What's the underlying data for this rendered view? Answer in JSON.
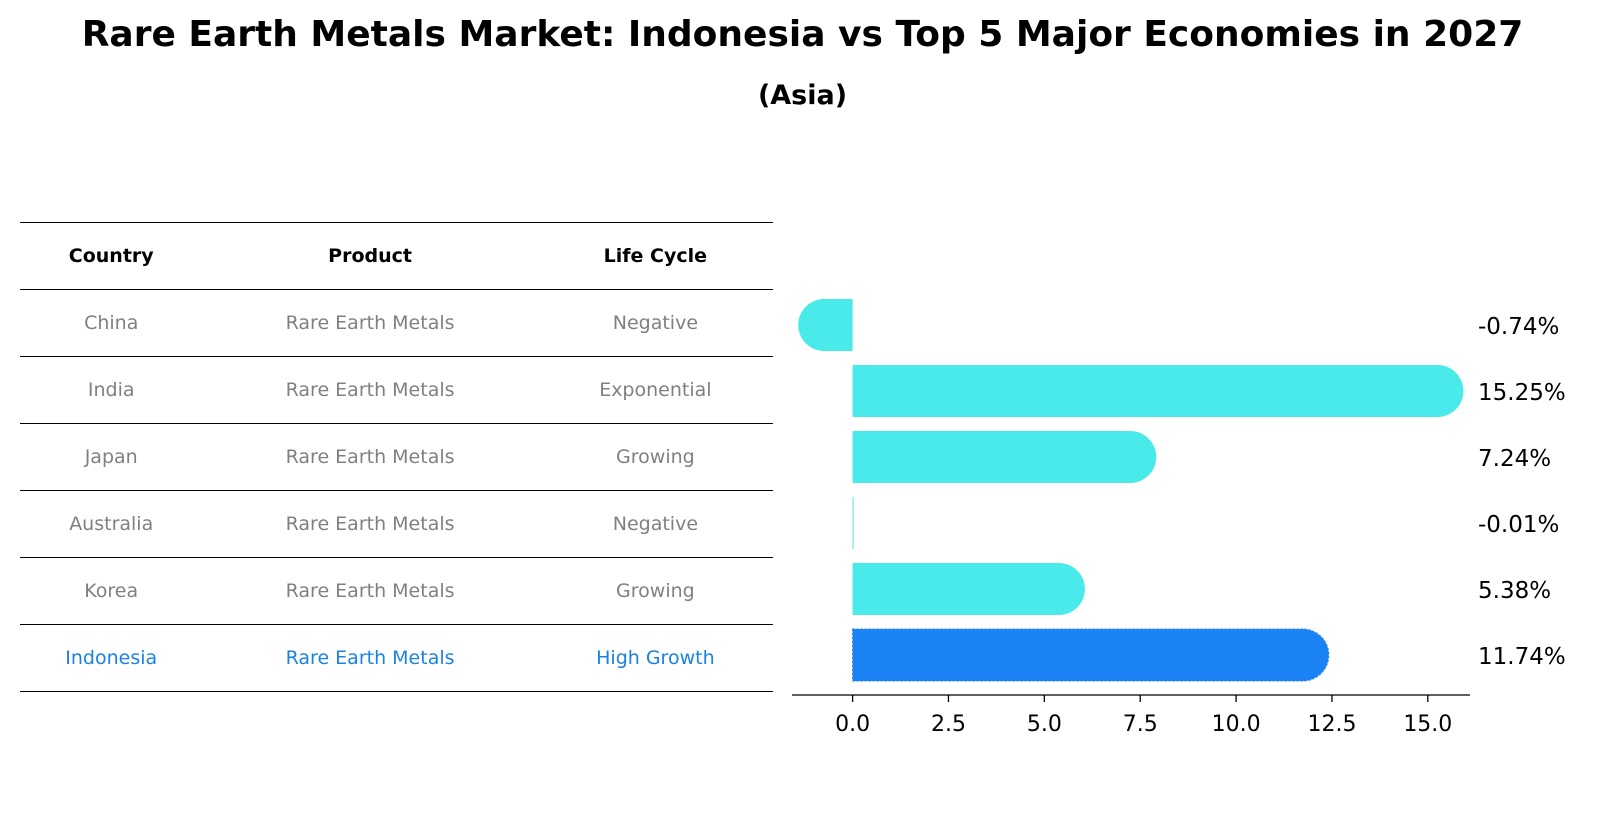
{
  "title": "Rare Earth Metals Market: Indonesia vs Top 5 Major Economies in 2027",
  "subtitle": "(Asia)",
  "table": {
    "headers": [
      "Country",
      "Product",
      "Life Cycle"
    ],
    "rows": [
      {
        "country": "China",
        "product": "Rare Earth Metals",
        "life_cycle": "Negative"
      },
      {
        "country": "India",
        "product": "Rare Earth Metals",
        "life_cycle": "Exponential"
      },
      {
        "country": "Japan",
        "product": "Rare Earth Metals",
        "life_cycle": "Growing"
      },
      {
        "country": "Australia",
        "product": "Rare Earth Metals",
        "life_cycle": "Negative"
      },
      {
        "country": "Korea",
        "product": "Rare Earth Metals",
        "life_cycle": "Growing"
      },
      {
        "country": "Indonesia",
        "product": "Rare Earth Metals",
        "life_cycle": "High Growth"
      }
    ]
  },
  "chart_data": {
    "type": "bar",
    "orientation": "horizontal",
    "categories": [
      "China",
      "India",
      "Japan",
      "Australia",
      "Korea",
      "Indonesia"
    ],
    "values": [
      -0.74,
      15.25,
      7.24,
      -0.01,
      5.38,
      11.74
    ],
    "value_labels": [
      "-0.74%",
      "15.25%",
      "7.24%",
      "-0.01%",
      "5.38%",
      "11.74%"
    ],
    "highlight": "Indonesia",
    "xlim": [
      -1.58,
      16.1
    ],
    "xticks": [
      0.0,
      2.5,
      5.0,
      7.5,
      10.0,
      12.5,
      15.0
    ],
    "xtick_labels": [
      "0.0",
      "2.5",
      "5.0",
      "7.5",
      "10.0",
      "12.5",
      "15.0"
    ],
    "colors": {
      "bar": "#4aeaea",
      "highlight": "#1a82f4"
    }
  }
}
